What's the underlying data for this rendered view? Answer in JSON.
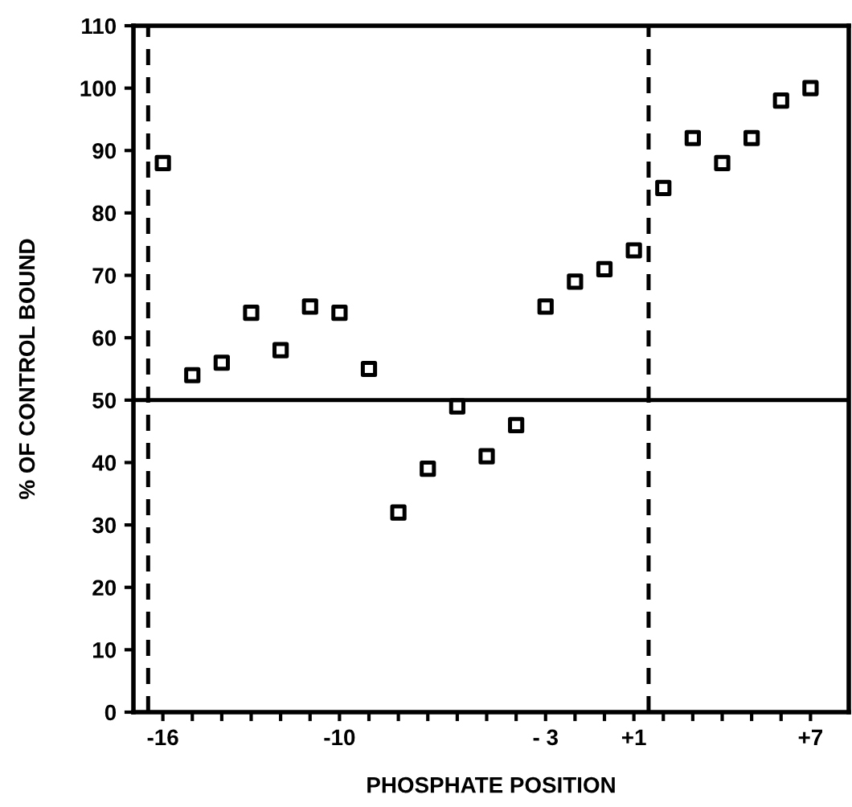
{
  "chart_data": {
    "type": "scatter",
    "xlabel": "PHOSPHATE POSITION",
    "ylabel": "% OF CONTROL BOUND",
    "categories": [
      "-16",
      null,
      null,
      null,
      null,
      null,
      "-10",
      null,
      null,
      null,
      null,
      null,
      null,
      "- 3",
      null,
      null,
      "+1",
      null,
      null,
      null,
      null,
      null,
      "+7"
    ],
    "values": [
      88,
      54,
      56,
      64,
      58,
      65,
      64,
      55,
      32,
      39,
      49,
      41,
      46,
      65,
      69,
      71,
      74,
      84,
      92,
      88,
      92,
      98,
      100
    ],
    "color": "#000000",
    "marker": "square",
    "ylim": [
      0,
      110
    ],
    "yticks": [
      0,
      10,
      20,
      30,
      40,
      50,
      60,
      70,
      80,
      90,
      100,
      110
    ],
    "ref_lines": [
      {
        "axis": "y",
        "value": 50,
        "line_style": "solid",
        "color": "#000000"
      }
    ],
    "grid": false
  }
}
